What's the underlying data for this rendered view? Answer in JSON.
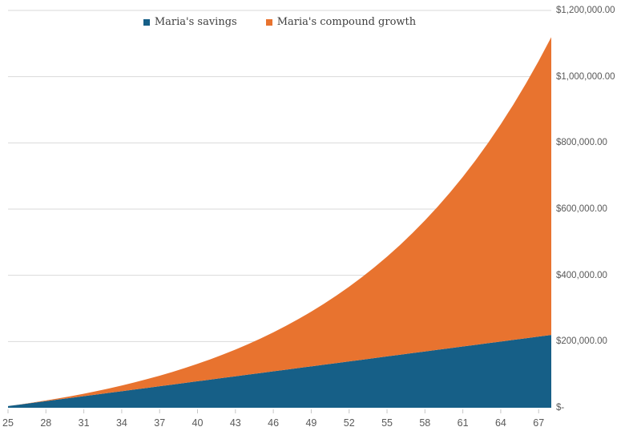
{
  "chart_data": {
    "type": "area",
    "stacked": true,
    "title": "",
    "xlabel": "",
    "ylabel": "",
    "x": [
      25,
      26,
      27,
      28,
      29,
      30,
      31,
      32,
      33,
      34,
      35,
      36,
      37,
      38,
      39,
      40,
      41,
      42,
      43,
      44,
      45,
      46,
      47,
      48,
      49,
      50,
      51,
      52,
      53,
      54,
      55,
      56,
      57,
      58,
      59,
      60,
      61,
      62,
      63,
      64,
      65,
      66,
      67,
      68
    ],
    "series": [
      {
        "name": "Maria's savings",
        "color": "#165f87",
        "values": [
          5000,
          10000,
          15000,
          20000,
          25000,
          30000,
          35000,
          40000,
          45000,
          50000,
          55000,
          60000,
          65000,
          70000,
          75000,
          80000,
          85000,
          90000,
          95000,
          100000,
          105000,
          110000,
          115000,
          120000,
          125000,
          130000,
          135000,
          140000,
          145000,
          150000,
          155000,
          160000,
          165000,
          170000,
          175000,
          180000,
          185000,
          190000,
          195000,
          200000,
          205000,
          210000,
          215000,
          220000
        ]
      },
      {
        "name": "Maria's compound growth",
        "color": "#e8732f",
        "values": [
          0,
          320,
          980,
          2003,
          3411,
          5230,
          7484,
          10203,
          13417,
          17155,
          21453,
          26346,
          31872,
          38072,
          44989,
          52668,
          61159,
          70513,
          80786,
          92036,
          104326,
          117723,
          132297,
          148124,
          165284,
          183863,
          203950,
          225643,
          249044,
          274263,
          301415,
          330626,
          362026,
          395756,
          431964,
          470810,
          512462,
          557099,
          604914,
          656108,
          710836,
          769450,
          832135,
          899151
        ]
      }
    ],
    "y_axis": {
      "min": 0,
      "max": 1200000,
      "tick_values": [
        0,
        200000,
        400000,
        600000,
        800000,
        1000000,
        1200000
      ],
      "tick_labels": [
        "$-",
        "$200,000.00",
        "$400,000.00",
        "$600,000.00",
        "$800,000.00",
        "$1,000,000.00",
        "$1,200,000.00"
      ],
      "side": "right"
    },
    "x_axis": {
      "tick_ages": [
        25,
        28,
        31,
        34,
        37,
        40,
        43,
        46,
        49,
        52,
        55,
        58,
        61,
        64,
        67
      ],
      "tick_labels": [
        "25",
        "28",
        "31",
        "34",
        "37",
        "40",
        "43",
        "46",
        "49",
        "52",
        "55",
        "58",
        "61",
        "64",
        "67"
      ]
    },
    "legend_position": "top-center",
    "grid": true,
    "grid_color": "#d9d9d9",
    "tick_color": "#c6c6c6",
    "axis_text_color": "#595959",
    "background_color": "#ffffff"
  }
}
